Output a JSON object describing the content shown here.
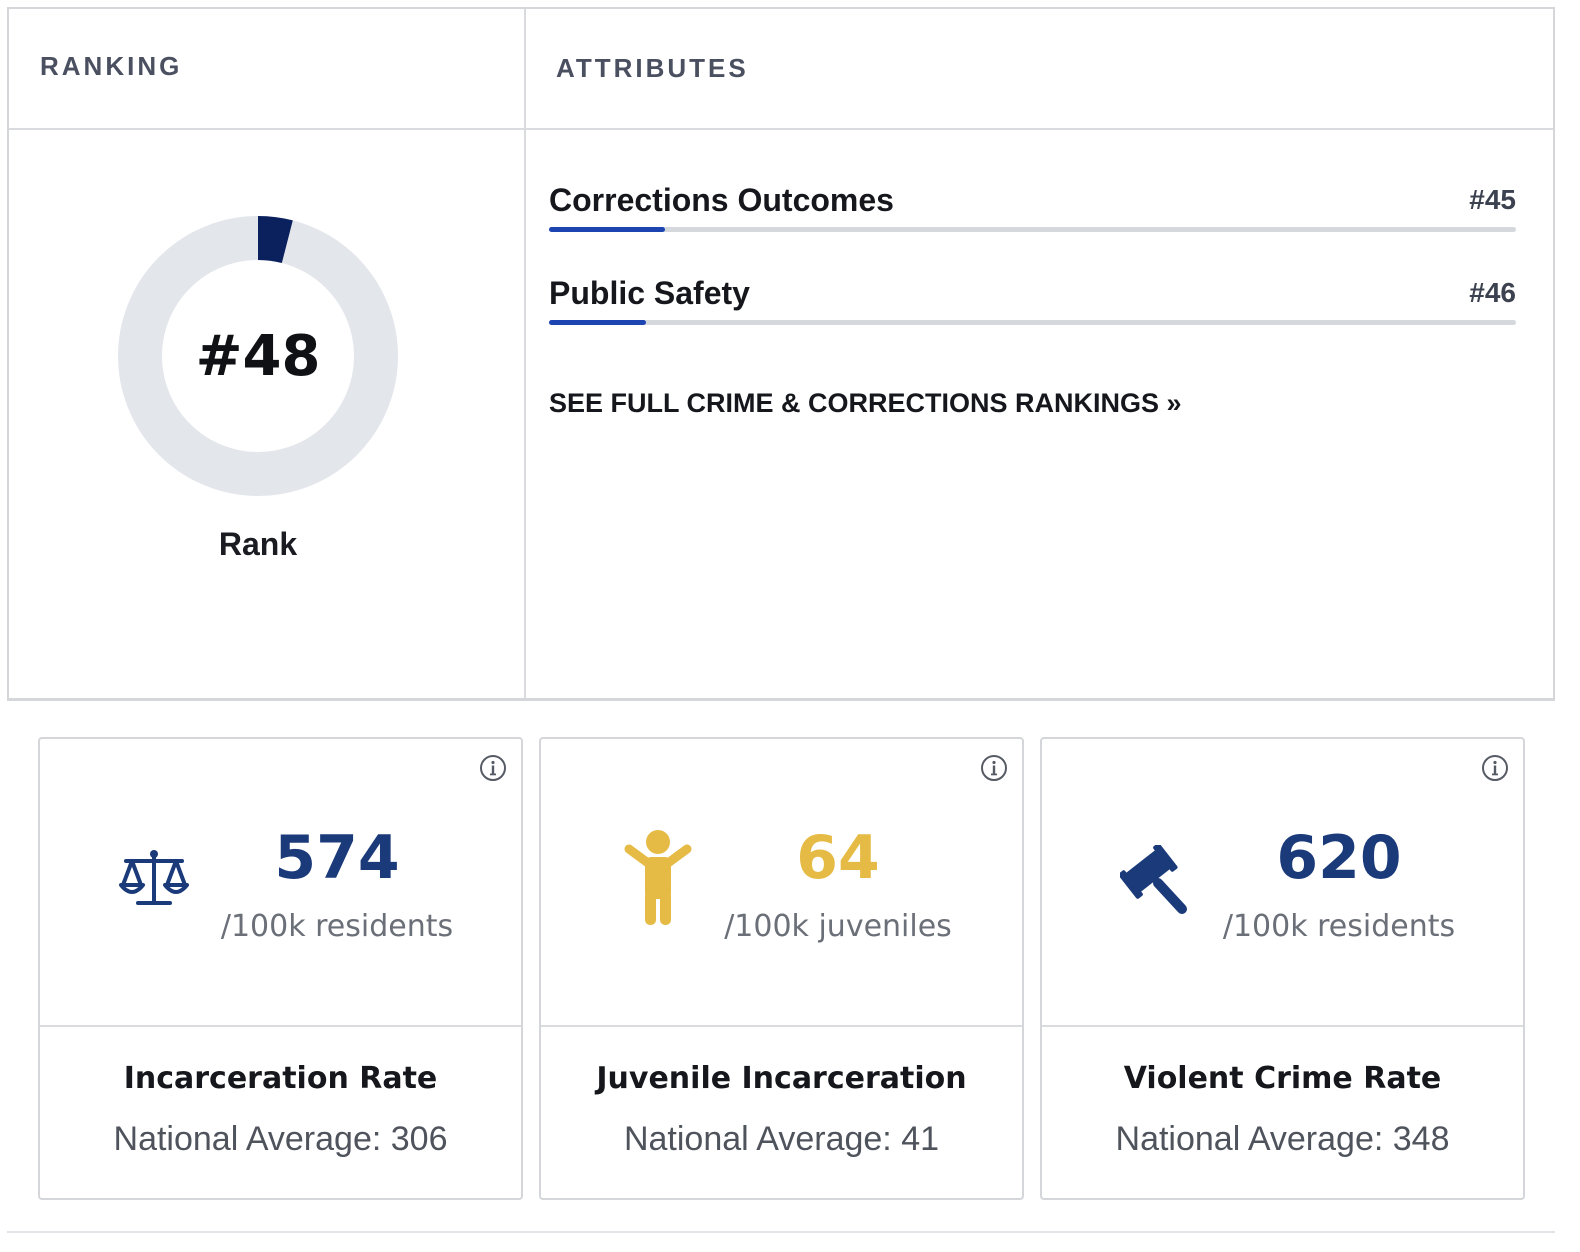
{
  "ranking": {
    "label": "RANKING",
    "rank_display": "#48",
    "rank_value": 48,
    "rank_fraction": 0.04,
    "caption": "Rank"
  },
  "attributes": {
    "label": "ATTRIBUTES",
    "items": [
      {
        "name": "Corrections Outcomes",
        "rank": "#45",
        "fill_fraction": 0.12
      },
      {
        "name": "Public Safety",
        "rank": "#46",
        "fill_fraction": 0.1
      }
    ],
    "see_full_link": "SEE FULL CRIME & CORRECTIONS RANKINGS »"
  },
  "metrics": [
    {
      "icon": "scales-icon",
      "value": "574",
      "unit": "/100k residents",
      "title": "Incarceration Rate",
      "average": "National Average: 306",
      "color": "#1b3a7a"
    },
    {
      "icon": "child-icon",
      "value": "64",
      "unit": "/100k juveniles",
      "title": "Juvenile Incarceration",
      "average": "National Average: 41",
      "color": "#e6bb45"
    },
    {
      "icon": "gavel-icon",
      "value": "620",
      "unit": "/100k residents",
      "title": "Violent Crime Rate",
      "average": "National Average: 348",
      "color": "#1b3a7a"
    }
  ],
  "colors": {
    "donut_track": "#e3e6eb",
    "donut_fill": "#0b215e",
    "bar_fill": "#1d45b2",
    "bar_track": "#d5d8dd"
  }
}
